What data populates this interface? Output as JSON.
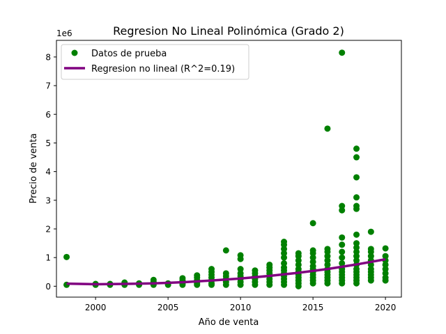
{
  "colors": {
    "points": "#008000",
    "curve": "#800080",
    "axis": "#000000",
    "background": "#ffffff"
  },
  "chart_data": {
    "type": "scatter",
    "title": "Regresion No Lineal Polinómica (Grado 2)",
    "xlabel": "Año de venta",
    "ylabel": "Precio de venta",
    "y_scale_label": "1e6",
    "xlim": [
      1997.3,
      2021.1
    ],
    "ylim": [
      -0.38,
      8.58
    ],
    "x_ticks": [
      2000,
      2005,
      2010,
      2015,
      2020
    ],
    "x_tick_labels": [
      "2000",
      "2005",
      "2010",
      "2015",
      "2020"
    ],
    "y_ticks": [
      0,
      1,
      2,
      3,
      4,
      5,
      6,
      7,
      8
    ],
    "y_tick_labels": [
      "0",
      "1",
      "2",
      "3",
      "4",
      "5",
      "6",
      "7",
      "8"
    ],
    "grid": false,
    "legend_position": "top-left",
    "legend": [
      "Datos de prueba",
      "Regresion no lineal (R^2=0.19)"
    ],
    "series": [
      {
        "name": "Datos de prueba",
        "kind": "scatter",
        "points": [
          [
            1998,
            1.02
          ],
          [
            1998,
            0.05
          ],
          [
            2000,
            0.05
          ],
          [
            2000,
            0.08
          ],
          [
            2001,
            0.05
          ],
          [
            2001,
            0.08
          ],
          [
            2002,
            0.05
          ],
          [
            2002,
            0.1
          ],
          [
            2002,
            0.13
          ],
          [
            2003,
            0.05
          ],
          [
            2003,
            0.1
          ],
          [
            2004,
            0.05
          ],
          [
            2004,
            0.1
          ],
          [
            2004,
            0.15
          ],
          [
            2004,
            0.22
          ],
          [
            2005,
            0.05
          ],
          [
            2005,
            0.1
          ],
          [
            2006,
            0.05
          ],
          [
            2006,
            0.1
          ],
          [
            2006,
            0.15
          ],
          [
            2006,
            0.2
          ],
          [
            2006,
            0.28
          ],
          [
            2007,
            0.05
          ],
          [
            2007,
            0.1
          ],
          [
            2007,
            0.15
          ],
          [
            2007,
            0.2
          ],
          [
            2007,
            0.3
          ],
          [
            2007,
            0.38
          ],
          [
            2008,
            0.05
          ],
          [
            2008,
            0.1
          ],
          [
            2008,
            0.2
          ],
          [
            2008,
            0.3
          ],
          [
            2008,
            0.4
          ],
          [
            2008,
            0.5
          ],
          [
            2008,
            0.6
          ],
          [
            2009,
            0.05
          ],
          [
            2009,
            0.15
          ],
          [
            2009,
            0.25
          ],
          [
            2009,
            0.35
          ],
          [
            2009,
            0.45
          ],
          [
            2009,
            1.25
          ],
          [
            2010,
            0.05
          ],
          [
            2010,
            0.15
          ],
          [
            2010,
            0.25
          ],
          [
            2010,
            0.35
          ],
          [
            2010,
            0.45
          ],
          [
            2010,
            0.6
          ],
          [
            2010,
            0.95
          ],
          [
            2010,
            1.08
          ],
          [
            2011,
            0.05
          ],
          [
            2011,
            0.15
          ],
          [
            2011,
            0.25
          ],
          [
            2011,
            0.35
          ],
          [
            2011,
            0.45
          ],
          [
            2011,
            0.55
          ],
          [
            2012,
            0.05
          ],
          [
            2012,
            0.15
          ],
          [
            2012,
            0.25
          ],
          [
            2012,
            0.35
          ],
          [
            2012,
            0.45
          ],
          [
            2012,
            0.55
          ],
          [
            2012,
            0.65
          ],
          [
            2012,
            0.75
          ],
          [
            2013,
            0.05
          ],
          [
            2013,
            0.15
          ],
          [
            2013,
            0.25
          ],
          [
            2013,
            0.35
          ],
          [
            2013,
            0.45
          ],
          [
            2013,
            0.55
          ],
          [
            2013,
            0.65
          ],
          [
            2013,
            0.8
          ],
          [
            2013,
            1.0
          ],
          [
            2013,
            1.15
          ],
          [
            2013,
            1.3
          ],
          [
            2013,
            1.45
          ],
          [
            2013,
            1.55
          ],
          [
            2014,
            0.0
          ],
          [
            2014,
            0.1
          ],
          [
            2014,
            0.2
          ],
          [
            2014,
            0.3
          ],
          [
            2014,
            0.4
          ],
          [
            2014,
            0.5
          ],
          [
            2014,
            0.6
          ],
          [
            2014,
            0.75
          ],
          [
            2014,
            0.9
          ],
          [
            2014,
            1.05
          ],
          [
            2014,
            1.15
          ],
          [
            2015,
            0.1
          ],
          [
            2015,
            0.2
          ],
          [
            2015,
            0.3
          ],
          [
            2015,
            0.4
          ],
          [
            2015,
            0.5
          ],
          [
            2015,
            0.6
          ],
          [
            2015,
            0.7
          ],
          [
            2015,
            0.85
          ],
          [
            2015,
            1.0
          ],
          [
            2015,
            1.15
          ],
          [
            2015,
            1.25
          ],
          [
            2015,
            2.2
          ],
          [
            2016,
            0.1
          ],
          [
            2016,
            0.2
          ],
          [
            2016,
            0.3
          ],
          [
            2016,
            0.4
          ],
          [
            2016,
            0.5
          ],
          [
            2016,
            0.6
          ],
          [
            2016,
            0.75
          ],
          [
            2016,
            0.9
          ],
          [
            2016,
            1.05
          ],
          [
            2016,
            1.2
          ],
          [
            2016,
            1.3
          ],
          [
            2016,
            5.5
          ],
          [
            2017,
            0.1
          ],
          [
            2017,
            0.2
          ],
          [
            2017,
            0.3
          ],
          [
            2017,
            0.4
          ],
          [
            2017,
            0.5
          ],
          [
            2017,
            0.6
          ],
          [
            2017,
            0.8
          ],
          [
            2017,
            1.0
          ],
          [
            2017,
            1.2
          ],
          [
            2017,
            1.45
          ],
          [
            2017,
            1.7
          ],
          [
            2017,
            2.65
          ],
          [
            2017,
            2.8
          ],
          [
            2017,
            8.15
          ],
          [
            2018,
            0.1
          ],
          [
            2018,
            0.2
          ],
          [
            2018,
            0.3
          ],
          [
            2018,
            0.4
          ],
          [
            2018,
            0.5
          ],
          [
            2018,
            0.6
          ],
          [
            2018,
            0.75
          ],
          [
            2018,
            0.9
          ],
          [
            2018,
            1.05
          ],
          [
            2018,
            1.2
          ],
          [
            2018,
            1.35
          ],
          [
            2018,
            1.5
          ],
          [
            2018,
            1.8
          ],
          [
            2018,
            2.7
          ],
          [
            2018,
            2.8
          ],
          [
            2018,
            3.1
          ],
          [
            2018,
            3.8
          ],
          [
            2018,
            4.5
          ],
          [
            2018,
            4.8
          ],
          [
            2019,
            0.2
          ],
          [
            2019,
            0.3
          ],
          [
            2019,
            0.4
          ],
          [
            2019,
            0.5
          ],
          [
            2019,
            0.6
          ],
          [
            2019,
            0.75
          ],
          [
            2019,
            0.9
          ],
          [
            2019,
            1.05
          ],
          [
            2019,
            1.2
          ],
          [
            2019,
            1.3
          ],
          [
            2019,
            1.9
          ],
          [
            2020,
            0.2
          ],
          [
            2020,
            0.3
          ],
          [
            2020,
            0.45
          ],
          [
            2020,
            0.6
          ],
          [
            2020,
            0.75
          ],
          [
            2020,
            0.9
          ],
          [
            2020,
            1.05
          ],
          [
            2020,
            1.32
          ]
        ]
      },
      {
        "name": "Regresion no lineal (R^2=0.19)",
        "kind": "line",
        "points": [
          [
            1998,
            0.09
          ],
          [
            2000,
            0.07
          ],
          [
            2002,
            0.08
          ],
          [
            2004,
            0.1
          ],
          [
            2006,
            0.14
          ],
          [
            2008,
            0.2
          ],
          [
            2010,
            0.27
          ],
          [
            2012,
            0.36
          ],
          [
            2014,
            0.47
          ],
          [
            2016,
            0.6
          ],
          [
            2018,
            0.76
          ],
          [
            2020,
            0.94
          ]
        ]
      }
    ]
  }
}
